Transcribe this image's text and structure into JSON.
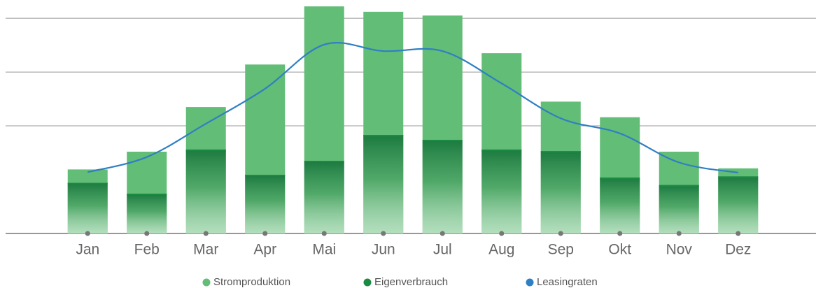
{
  "chart_data": {
    "type": "bar",
    "categories": [
      "Jan",
      "Feb",
      "Mar",
      "Apr",
      "Mai",
      "Jun",
      "Jul",
      "Aug",
      "Sep",
      "Okt",
      "Nov",
      "Dez"
    ],
    "series": [
      {
        "name": "Stromproduktion",
        "color": "#62bd76",
        "type": "bar",
        "values": [
          1.19,
          1.52,
          2.35,
          3.14,
          4.22,
          4.12,
          4.05,
          3.35,
          2.45,
          2.16,
          1.52,
          1.21
        ]
      },
      {
        "name": "Eigenverbrauch",
        "color": "#1c8a45",
        "type": "bar",
        "values": [
          0.94,
          0.74,
          1.56,
          1.09,
          1.35,
          1.83,
          1.74,
          1.56,
          1.53,
          1.04,
          0.9,
          1.06
        ]
      },
      {
        "name": "Leasingraten",
        "color": "#2f7fc4",
        "type": "line",
        "values": [
          1.14,
          1.42,
          2.04,
          2.69,
          3.51,
          3.39,
          3.39,
          2.79,
          2.14,
          1.86,
          1.32,
          1.13
        ]
      }
    ],
    "ylim": [
      0,
      4.3
    ],
    "yticks": [
      0,
      2,
      3,
      4
    ],
    "grid": true,
    "legend": "bottom"
  }
}
